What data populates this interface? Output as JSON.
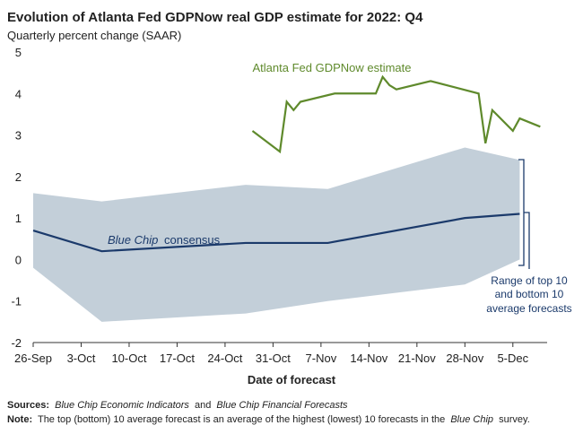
{
  "chart_data": {
    "type": "line",
    "title": "Evolution of Atlanta Fed GDPNow real GDP estimate for 2022: Q4",
    "subtitle": "Quarterly percent change (SAAR)",
    "x_label": "Date of forecast",
    "xlim": [
      "26-Sep",
      "10-Dec"
    ],
    "xticks": [
      "26-Sep",
      "3-Oct",
      "10-Oct",
      "17-Oct",
      "24-Oct",
      "31-Oct",
      "7-Nov",
      "14-Nov",
      "21-Nov",
      "28-Nov",
      "5-Dec"
    ],
    "ylim": [
      -2,
      5
    ],
    "yticks": [
      -2,
      -1,
      0,
      1,
      2,
      3,
      4,
      5
    ],
    "series": [
      {
        "name": "Atlanta Fed GDPNow estimate",
        "color": "#5f8a2c",
        "x": [
          "28-Oct",
          "1-Nov",
          "2-Nov",
          "3-Nov",
          "4-Nov",
          "9-Nov",
          "15-Nov",
          "16-Nov",
          "17-Nov",
          "18-Nov",
          "23-Nov",
          "30-Nov",
          "1-Dec",
          "2-Dec",
          "5-Dec",
          "6-Dec",
          "9-Dec"
        ],
        "values": [
          3.1,
          2.6,
          3.8,
          3.6,
          3.8,
          4.0,
          4.0,
          4.4,
          4.2,
          4.1,
          4.3,
          4.0,
          2.8,
          3.6,
          3.1,
          3.4,
          3.2
        ]
      },
      {
        "name": "Blue Chip consensus",
        "color": "#1b3a6b",
        "x": [
          "26-Sep",
          "6-Oct",
          "27-Oct",
          "8-Nov",
          "28-Nov",
          "6-Dec"
        ],
        "values": [
          0.7,
          0.2,
          0.4,
          0.4,
          1.0,
          1.1
        ]
      }
    ],
    "range": {
      "color": "#c3cfd9",
      "x": [
        "26-Sep",
        "6-Oct",
        "27-Oct",
        "8-Nov",
        "28-Nov",
        "6-Dec"
      ],
      "upper": [
        1.6,
        1.4,
        1.8,
        1.7,
        2.7,
        2.4
      ],
      "lower": [
        -0.2,
        -1.5,
        -1.3,
        -1.0,
        -0.6,
        0.0
      ]
    },
    "annotations": {
      "gdpnow": "Atlanta Fed GDPNow estimate",
      "consensus": [
        "Blue Chip",
        "consensus"
      ],
      "range": [
        "Range of top 10",
        "and bottom 10",
        "average forecasts"
      ]
    },
    "sources": [
      "Sources:",
      "Blue Chip Economic Indicators",
      "and",
      "Blue Chip Financial Forecasts"
    ],
    "note": [
      "Note:",
      "The top (bottom) 10 average forecast is an average of the highest (lowest) 10 forecasts in the",
      "Blue Chip",
      "survey."
    ]
  }
}
